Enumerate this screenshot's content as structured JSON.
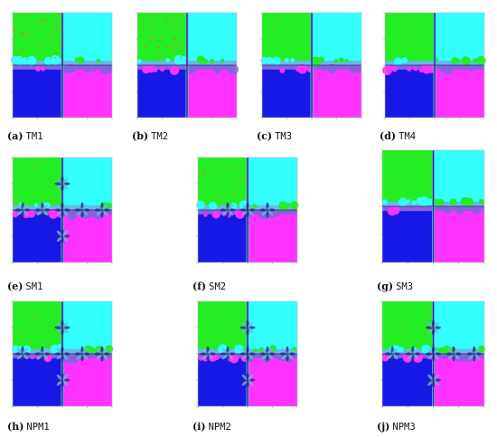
{
  "colors": {
    "top_left": "#22ee22",
    "top_right": "#33ffff",
    "bottom_left": "#1818e6",
    "bottom_right": "#ff33ff",
    "band_light": "#66b8e8",
    "band_purple": "#8860e0",
    "axis": "#2a2a80",
    "speckle": "#ee6a40"
  },
  "panels": [
    {
      "tag": "(a)",
      "name": "TM1",
      "noise": "high"
    },
    {
      "tag": "(b)",
      "name": "TM2",
      "noise": "high"
    },
    {
      "tag": "(c)",
      "name": "TM3",
      "noise": "low"
    },
    {
      "tag": "(d)",
      "name": "TM4",
      "noise": "low"
    },
    {
      "tag": "(e)",
      "name": "SM1",
      "noise": "flower"
    },
    {
      "tag": "(f)",
      "name": "SM2",
      "noise": "medium"
    },
    {
      "tag": "(g)",
      "name": "SM3",
      "noise": "low"
    },
    {
      "tag": "(h)",
      "name": "NPM1",
      "noise": "flower"
    },
    {
      "tag": "(i)",
      "name": "NPM2",
      "noise": "flower"
    },
    {
      "tag": "(j)",
      "name": "NPM3",
      "noise": "flower"
    }
  ]
}
